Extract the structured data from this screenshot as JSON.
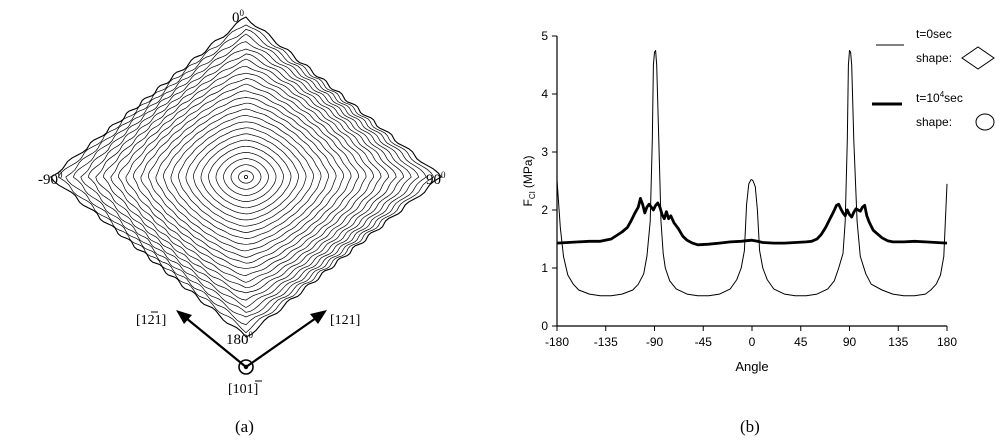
{
  "panel_a": {
    "label_top": "0",
    "label_left": "-90",
    "label_right": "90",
    "label_bottom": "180",
    "degree_mark": "0",
    "dir_left_a": "[1",
    "dir_left_b": "2",
    "dir_left_c": "1]",
    "dir_right": "[121]",
    "dir_bottom_a": "[10",
    "dir_bottom_b": "1",
    "dir_bottom_c": "]",
    "caption": "(a)"
  },
  "panel_b": {
    "caption": "(b)",
    "legend": {
      "entry1_time": "t=0sec",
      "entry1_shape": "shape:",
      "entry2_time_a": "t=10",
      "entry2_time_sup": "4",
      "entry2_time_b": "sec",
      "entry2_shape": "shape:"
    }
  },
  "chart_data": {
    "type": "line",
    "title": "",
    "xlabel": "Angle",
    "ylabel_main": "F",
    "ylabel_sub": "CI",
    "ylabel_unit": "(MPa)",
    "xlim": [
      -180,
      180
    ],
    "ylim": [
      0,
      5
    ],
    "xticks": [
      -180,
      -135,
      -90,
      -45,
      0,
      45,
      90,
      135,
      180
    ],
    "yticks": [
      0,
      1,
      2,
      3,
      4,
      5
    ],
    "grid": false,
    "legend_position": "top-right",
    "series": [
      {
        "name": "t=0sec",
        "line_width": "thin",
        "x": [
          -180,
          -177,
          -174,
          -170,
          -165,
          -160,
          -150,
          -140,
          -130,
          -120,
          -110,
          -105,
          -100,
          -97,
          -94,
          -92,
          -91,
          -90,
          -89,
          -88,
          -86,
          -84,
          -82,
          -80,
          -76,
          -70,
          -60,
          -50,
          -40,
          -30,
          -20,
          -14,
          -10,
          -7,
          -5,
          -3,
          -1,
          0,
          1,
          3,
          5,
          7,
          10,
          14,
          20,
          30,
          40,
          50,
          60,
          70,
          76,
          80,
          84,
          86,
          88,
          89,
          90,
          91,
          92,
          94,
          97,
          100,
          105,
          110,
          120,
          130,
          140,
          150,
          160,
          165,
          170,
          174,
          177,
          180
        ],
        "y": [
          2.52,
          1.7,
          1.2,
          0.88,
          0.72,
          0.62,
          0.55,
          0.52,
          0.52,
          0.55,
          0.62,
          0.72,
          0.9,
          1.2,
          1.8,
          3.2,
          4.5,
          4.72,
          4.75,
          4.5,
          3.2,
          1.8,
          1.25,
          1.0,
          0.78,
          0.64,
          0.55,
          0.52,
          0.52,
          0.55,
          0.64,
          0.8,
          1.0,
          1.3,
          2.1,
          2.45,
          2.52,
          2.52,
          2.5,
          2.4,
          2.0,
          1.3,
          1.0,
          0.8,
          0.64,
          0.55,
          0.52,
          0.52,
          0.55,
          0.64,
          0.78,
          1.0,
          1.25,
          1.8,
          3.2,
          4.5,
          4.75,
          4.72,
          4.5,
          3.2,
          1.8,
          1.2,
          0.9,
          0.72,
          0.62,
          0.55,
          0.52,
          0.52,
          0.55,
          0.62,
          0.72,
          0.88,
          1.2,
          2.45
        ]
      },
      {
        "name": "t=10^4sec",
        "line_width": "thick",
        "x": [
          -180,
          -170,
          -160,
          -150,
          -140,
          -130,
          -125,
          -120,
          -115,
          -112,
          -108,
          -105,
          -103,
          -101,
          -99,
          -97,
          -95,
          -93,
          -91,
          -89,
          -87,
          -85,
          -83,
          -81,
          -79,
          -77,
          -75,
          -72,
          -68,
          -64,
          -60,
          -55,
          -50,
          -40,
          -30,
          -20,
          -10,
          -5,
          0,
          5,
          10,
          20,
          30,
          40,
          50,
          55,
          60,
          64,
          68,
          72,
          75,
          78,
          80,
          82,
          84,
          86,
          88,
          90,
          92,
          94,
          96,
          98,
          100,
          102,
          104,
          106,
          108,
          110,
          112,
          115,
          120,
          125,
          130,
          140,
          150,
          160,
          170,
          180
        ],
        "y": [
          1.43,
          1.44,
          1.45,
          1.46,
          1.46,
          1.5,
          1.56,
          1.62,
          1.7,
          1.8,
          1.95,
          2.05,
          2.2,
          2.1,
          1.95,
          2.05,
          2.1,
          2.05,
          2.0,
          2.08,
          2.12,
          2.05,
          1.92,
          1.85,
          1.97,
          1.85,
          1.9,
          1.78,
          1.68,
          1.55,
          1.48,
          1.43,
          1.4,
          1.41,
          1.43,
          1.45,
          1.46,
          1.47,
          1.48,
          1.46,
          1.44,
          1.43,
          1.43,
          1.44,
          1.45,
          1.46,
          1.5,
          1.58,
          1.7,
          1.85,
          1.96,
          2.08,
          2.1,
          2.02,
          1.95,
          1.9,
          2.0,
          1.92,
          1.88,
          1.96,
          2.02,
          2.0,
          1.98,
          2.05,
          2.08,
          1.9,
          1.8,
          1.72,
          1.65,
          1.6,
          1.52,
          1.47,
          1.45,
          1.45,
          1.46,
          1.45,
          1.44,
          1.43
        ]
      }
    ]
  }
}
